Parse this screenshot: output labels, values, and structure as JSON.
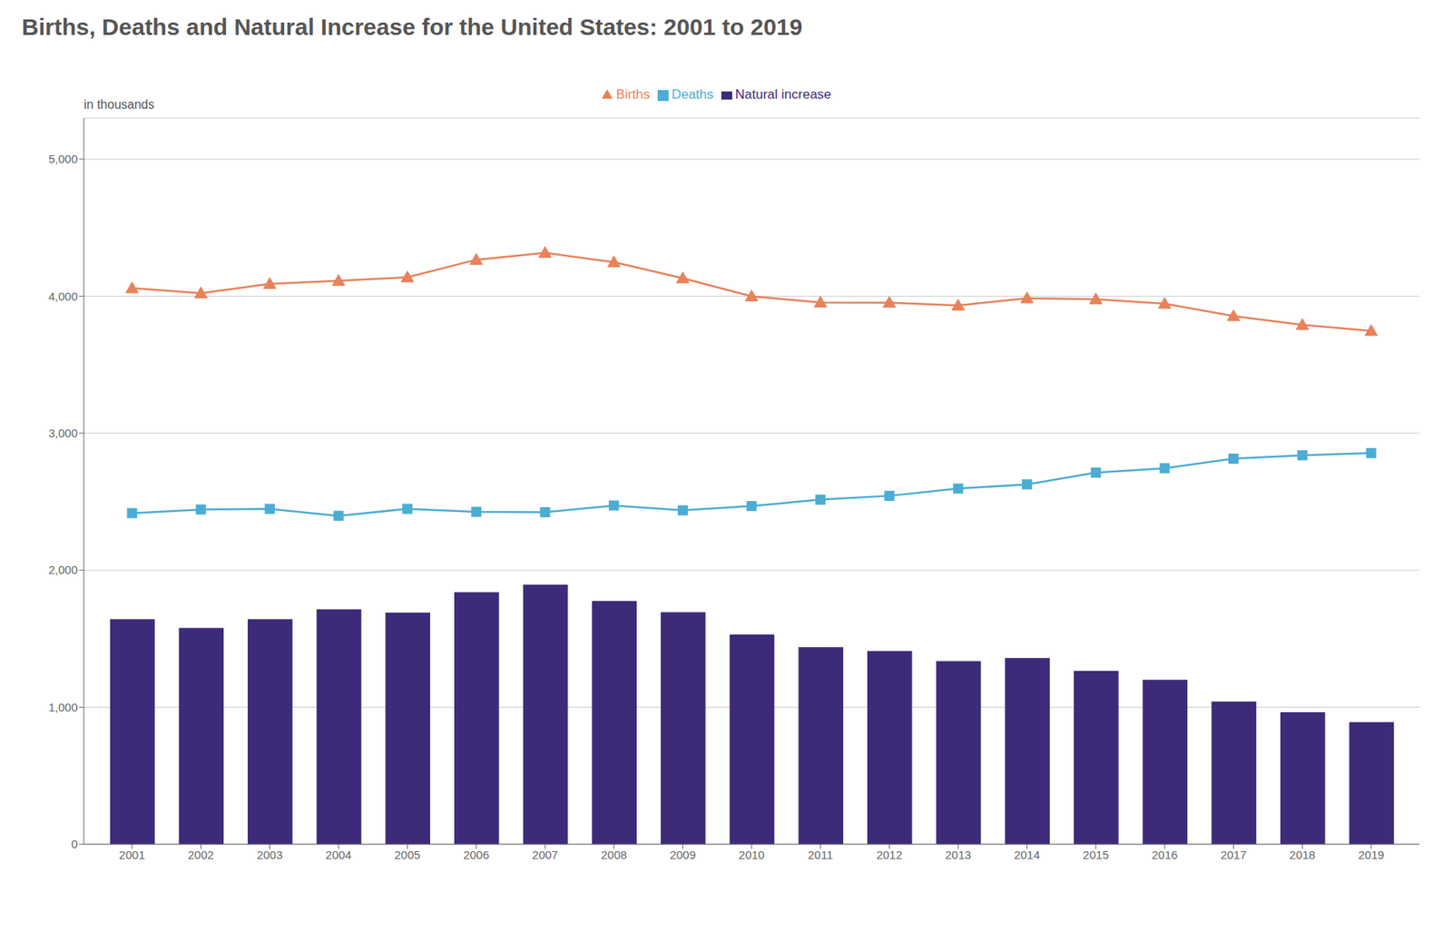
{
  "chart_data": {
    "type": "bar",
    "title": "Births, Deaths and Natural Increase for the United States: 2001 to 2019",
    "ylabel": "in thousands",
    "x": [
      2001,
      2002,
      2003,
      2004,
      2005,
      2006,
      2007,
      2008,
      2009,
      2010,
      2011,
      2012,
      2013,
      2014,
      2015,
      2016,
      2017,
      2018,
      2019
    ],
    "series": [
      {
        "name": "Natural increase",
        "type": "bar",
        "color": "#3D2B7A",
        "values": [
          1642,
          1579,
          1642,
          1715,
          1690,
          1840,
          1894,
          1776,
          1694,
          1531,
          1439,
          1410,
          1336,
          1359,
          1266,
          1201,
          1041,
          964,
          892
        ]
      },
      {
        "name": "Births",
        "type": "line",
        "color": "#E8825A",
        "marker": "triangle",
        "values": [
          4058,
          4022,
          4090,
          4112,
          4138,
          4266,
          4317,
          4248,
          4131,
          3999,
          3954,
          3953,
          3932,
          3985,
          3978,
          3945,
          3855,
          3791,
          3747
        ]
      },
      {
        "name": "Deaths",
        "type": "line",
        "color": "#4BACD4",
        "marker": "square",
        "values": [
          2416,
          2443,
          2448,
          2397,
          2448,
          2426,
          2423,
          2472,
          2437,
          2468,
          2515,
          2543,
          2596,
          2626,
          2712,
          2744,
          2814,
          2839,
          2855
        ]
      }
    ],
    "xlim": [
      2000.3,
      2019.7
    ],
    "xticks": [
      2001,
      2002,
      2003,
      2004,
      2005,
      2006,
      2007,
      2008,
      2009,
      2010,
      2011,
      2012,
      2013,
      2014,
      2015,
      2016,
      2017,
      2018,
      2019
    ],
    "ylim": [
      0,
      5300
    ],
    "yticks": [
      0,
      {
        "value": 1000,
        "label": "1,000"
      },
      {
        "value": 2000,
        "label": "2,000"
      },
      {
        "value": 3000,
        "label": "3,000"
      },
      {
        "value": 4000,
        "label": "4,000"
      },
      {
        "value": 5000,
        "label": "5,000"
      }
    ],
    "grid": "y",
    "legend": "top"
  }
}
